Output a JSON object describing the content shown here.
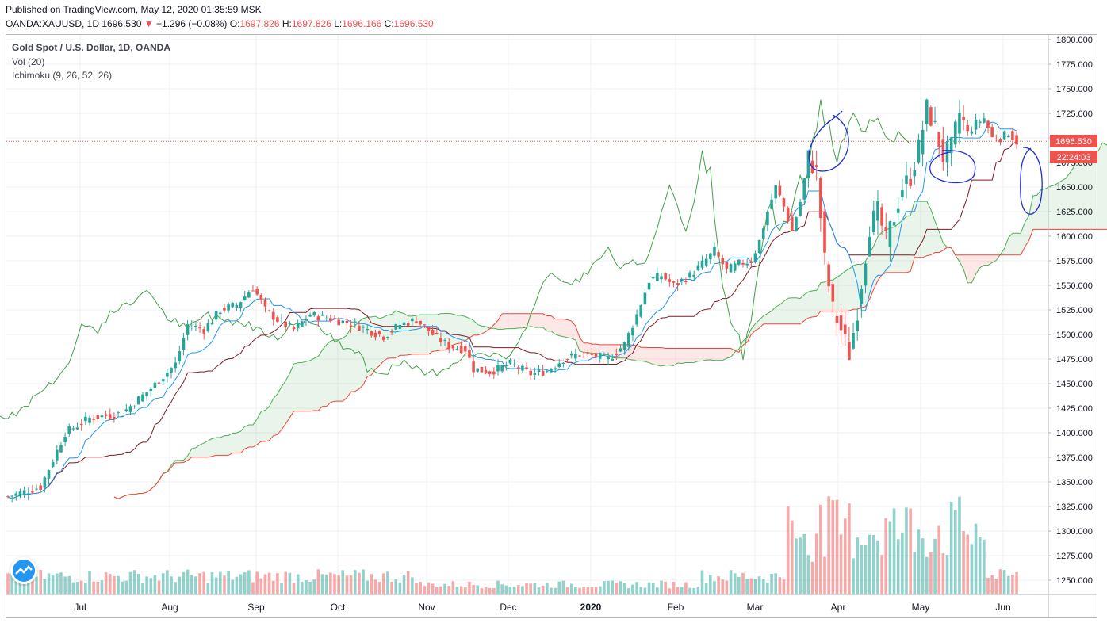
{
  "header": {
    "published": "Published on TradingView.com, May 12, 2020 01:35:59 MSK",
    "symbol": "OANDA:XAUUSD, 1D",
    "last": "1696.530",
    "change_arrow": "▼",
    "change": "−1.296 (−0.08%)",
    "o_label": "O:",
    "o_val": "1697.826",
    "h_label": "H:",
    "h_val": "1697.826",
    "l_label": "L:",
    "l_val": "1696.166",
    "c_label": "C:",
    "c_val": "1696.530"
  },
  "legend": {
    "title": "Gold Spot / U.S. Dollar, 1D, OANDA",
    "volume": "Vol (20)",
    "ichimoku": "Ichimoku (9, 26, 52, 26)"
  },
  "price_label": "1696.530",
  "countdown_label": "22:24:03",
  "colors": {
    "up": "#26a69a",
    "down": "#ef5350",
    "tenkan": "#2196f3",
    "kijun": "#801922",
    "chikou": "#43a047",
    "span_a": "#4caf50",
    "span_b": "#f44336",
    "annotation": "#1c2bd6"
  },
  "chart_data": {
    "type": "candlestick",
    "ylim": [
      1240,
      1808
    ],
    "y_ticks": [
      "1800.000",
      "1775.000",
      "1750.000",
      "1725.000",
      "1700.000",
      "1675.000",
      "1650.000",
      "1625.000",
      "1600.000",
      "1575.000",
      "1550.000",
      "1525.000",
      "1500.000",
      "1475.000",
      "1450.000",
      "1425.000",
      "1400.000",
      "1375.000",
      "1350.000",
      "1325.000",
      "1300.000",
      "1275.000",
      "1250.000"
    ],
    "x_ticks": [
      "Jul",
      "Aug",
      "Sep",
      "Oct",
      "Nov",
      "Dec",
      "2020",
      "Feb",
      "Mar",
      "Apr",
      "May",
      "Jun"
    ],
    "price_path": [
      [
        0,
        1335
      ],
      [
        8,
        1345
      ],
      [
        14,
        1400
      ],
      [
        20,
        1415
      ],
      [
        28,
        1420
      ],
      [
        35,
        1445
      ],
      [
        41,
        1470
      ],
      [
        44,
        1510
      ],
      [
        48,
        1505
      ],
      [
        52,
        1525
      ],
      [
        56,
        1530
      ],
      [
        60,
        1548
      ],
      [
        63,
        1525
      ],
      [
        66,
        1515
      ],
      [
        70,
        1505
      ],
      [
        74,
        1520
      ],
      [
        80,
        1515
      ],
      [
        85,
        1510
      ],
      [
        92,
        1498
      ],
      [
        96,
        1510
      ],
      [
        100,
        1515
      ],
      [
        104,
        1500
      ],
      [
        108,
        1488
      ],
      [
        112,
        1485
      ],
      [
        114,
        1465
      ],
      [
        118,
        1462
      ],
      [
        123,
        1470
      ],
      [
        128,
        1460
      ],
      [
        132,
        1463
      ],
      [
        136,
        1475
      ],
      [
        140,
        1480
      ],
      [
        144,
        1478
      ],
      [
        147,
        1475
      ],
      [
        151,
        1490
      ],
      [
        154,
        1520
      ],
      [
        157,
        1555
      ],
      [
        160,
        1560
      ],
      [
        163,
        1550
      ],
      [
        167,
        1560
      ],
      [
        170,
        1572
      ],
      [
        173,
        1585
      ],
      [
        176,
        1565
      ],
      [
        179,
        1572
      ],
      [
        182,
        1575
      ],
      [
        184,
        1595
      ],
      [
        186,
        1625
      ],
      [
        188,
        1650
      ],
      [
        190,
        1630
      ],
      [
        192,
        1605
      ],
      [
        194,
        1635
      ],
      [
        196,
        1680
      ],
      [
        198,
        1665
      ],
      [
        200,
        1575
      ],
      [
        202,
        1525
      ],
      [
        204,
        1505
      ],
      [
        206,
        1480
      ],
      [
        208,
        1525
      ],
      [
        211,
        1610
      ],
      [
        213,
        1625
      ],
      [
        215,
        1595
      ],
      [
        217,
        1620
      ],
      [
        219,
        1650
      ],
      [
        221,
        1660
      ],
      [
        223,
        1690
      ],
      [
        225,
        1730
      ],
      [
        227,
        1710
      ],
      [
        229,
        1680
      ],
      [
        231,
        1690
      ],
      [
        233,
        1725
      ],
      [
        235,
        1705
      ],
      [
        237,
        1715
      ],
      [
        239,
        1720
      ],
      [
        241,
        1700
      ],
      [
        243,
        1700
      ],
      [
        245,
        1705
      ],
      [
        247,
        1696
      ]
    ],
    "annotations": [
      "circle near April highs",
      "circle near May Kijun",
      "oval ahead of price in June"
    ]
  }
}
